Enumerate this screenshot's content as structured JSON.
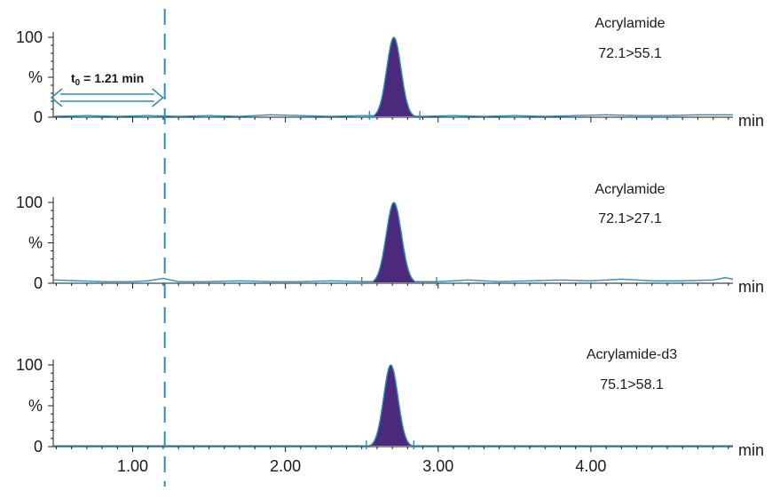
{
  "colors": {
    "trace": "#2e8fb6",
    "peak_fill": "#4b2a7e",
    "marker": "#2e8fb6",
    "axis": "#1a1a1a"
  },
  "chart_data": {
    "type": "line",
    "x_unit_label": "min",
    "xlim": [
      0.48,
      4.93
    ],
    "ylim": [
      0,
      100
    ],
    "y_tick_labels": [
      "100",
      "%",
      "0"
    ],
    "x_ticks": [
      1.0,
      2.0,
      3.0,
      4.0
    ],
    "x_tick_labels": [
      "1.00",
      "2.00",
      "3.00",
      "4.00"
    ],
    "grid": false,
    "t0": {
      "time": 1.21,
      "label_t": "t",
      "label_sub": "0",
      "label_rest": " = 1.21 min"
    },
    "panels": [
      {
        "compound": "Acrylamide",
        "transition": "72.1>55.1",
        "peak": {
          "rt": 2.71,
          "height": 100,
          "sigma": 0.047,
          "integration_start": 2.55,
          "integration_end": 2.88
        },
        "baseline": [
          [
            0.48,
            1
          ],
          [
            0.7,
            2
          ],
          [
            0.9,
            1
          ],
          [
            1.1,
            2
          ],
          [
            1.3,
            1
          ],
          [
            1.5,
            2
          ],
          [
            1.7,
            1
          ],
          [
            1.9,
            3
          ],
          [
            2.1,
            2
          ],
          [
            2.3,
            1
          ],
          [
            2.5,
            2
          ],
          [
            2.9,
            1
          ],
          [
            3.1,
            2
          ],
          [
            3.3,
            1
          ],
          [
            3.5,
            2
          ],
          [
            3.7,
            1
          ],
          [
            3.9,
            2
          ],
          [
            4.1,
            3
          ],
          [
            4.3,
            2
          ],
          [
            4.5,
            2
          ],
          [
            4.7,
            3
          ],
          [
            4.93,
            3
          ]
        ]
      },
      {
        "compound": "Acrylamide",
        "transition": "72.1>27.1",
        "peak": {
          "rt": 2.71,
          "height": 100,
          "sigma": 0.05,
          "integration_start": 2.5,
          "integration_end": 2.99
        },
        "baseline": [
          [
            0.48,
            4
          ],
          [
            0.65,
            3
          ],
          [
            0.8,
            2
          ],
          [
            1.0,
            2
          ],
          [
            1.1,
            3
          ],
          [
            1.2,
            6
          ],
          [
            1.3,
            2
          ],
          [
            1.5,
            2
          ],
          [
            1.7,
            3
          ],
          [
            1.9,
            2
          ],
          [
            2.1,
            2
          ],
          [
            2.3,
            3
          ],
          [
            2.5,
            2
          ],
          [
            3.0,
            2
          ],
          [
            3.2,
            4
          ],
          [
            3.4,
            2
          ],
          [
            3.6,
            3
          ],
          [
            3.8,
            4
          ],
          [
            4.0,
            3
          ],
          [
            4.2,
            5
          ],
          [
            4.4,
            3
          ],
          [
            4.6,
            3
          ],
          [
            4.8,
            4
          ],
          [
            4.88,
            7
          ],
          [
            4.93,
            5
          ]
        ]
      },
      {
        "compound": "Acrylamide-d3",
        "transition": "75.1>58.1",
        "peak": {
          "rt": 2.69,
          "height": 100,
          "sigma": 0.047,
          "integration_start": 2.53,
          "integration_end": 2.84
        },
        "baseline": [
          [
            0.48,
            1
          ],
          [
            1.0,
            1
          ],
          [
            1.5,
            1
          ],
          [
            2.0,
            1
          ],
          [
            2.5,
            1
          ],
          [
            2.9,
            1
          ],
          [
            3.5,
            1
          ],
          [
            4.0,
            1
          ],
          [
            4.5,
            1
          ],
          [
            4.93,
            1
          ]
        ]
      }
    ]
  }
}
